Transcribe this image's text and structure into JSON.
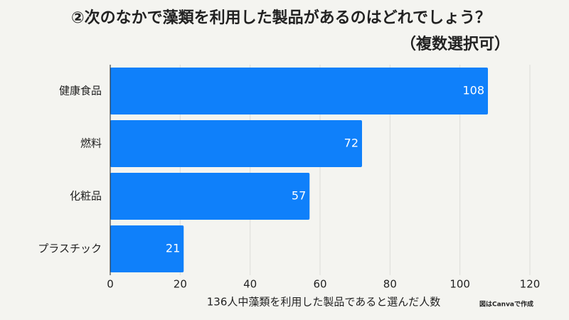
{
  "chart_data": {
    "type": "barh",
    "title": "②次のなかで藻類を利用した製品があるのはどれでしょう？",
    "subtitle": "（複数選択可）",
    "x_label": "136人中藻類を利用した製品であると選んだ人数",
    "annotation": "図はCanvaで作成",
    "categories": [
      "健康食品",
      "燃料",
      "化粧品",
      "プラスチック"
    ],
    "values": [
      108,
      72,
      57,
      21
    ],
    "color": "#0f80fa",
    "xlim": [
      0,
      120
    ],
    "xticks": [
      0,
      20,
      40,
      60,
      80,
      100,
      120
    ],
    "grid": true
  }
}
